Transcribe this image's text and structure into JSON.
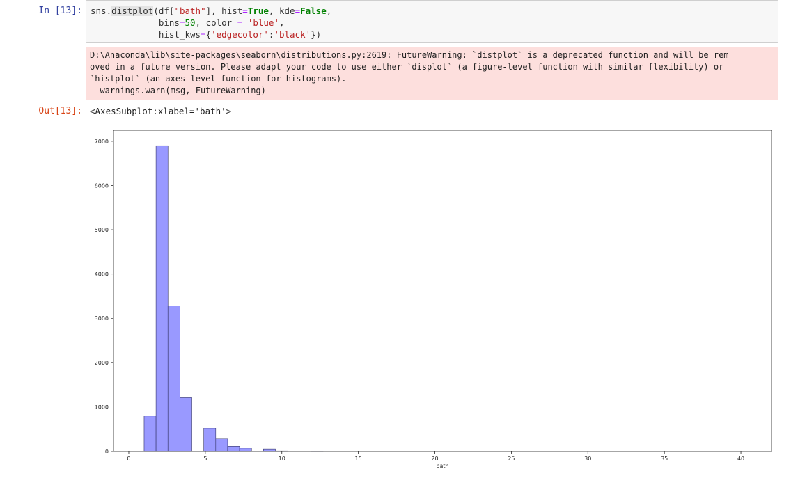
{
  "notebook": {
    "in_prompt": "In [13]:",
    "out_prompt": "Out[13]:",
    "code_lines": [
      {
        "tokens": [
          {
            "t": "sns.",
            "c": ""
          },
          {
            "t": "distplot",
            "c": "hl"
          },
          {
            "t": "(df[",
            "c": ""
          },
          {
            "t": "\"bath\"",
            "c": "str"
          },
          {
            "t": "], hist",
            "c": ""
          },
          {
            "t": "=",
            "c": "op"
          },
          {
            "t": "True",
            "c": "kw"
          },
          {
            "t": ", kde",
            "c": ""
          },
          {
            "t": "=",
            "c": "op"
          },
          {
            "t": "False",
            "c": "kw"
          },
          {
            "t": ",",
            "c": ""
          }
        ]
      },
      {
        "tokens": [
          {
            "t": "             bins",
            "c": ""
          },
          {
            "t": "=",
            "c": "op"
          },
          {
            "t": "50",
            "c": "num"
          },
          {
            "t": ", color ",
            "c": ""
          },
          {
            "t": "=",
            "c": "op"
          },
          {
            "t": " ",
            "c": ""
          },
          {
            "t": "'blue'",
            "c": "str"
          },
          {
            "t": ",",
            "c": ""
          }
        ]
      },
      {
        "tokens": [
          {
            "t": "             hist_kws",
            "c": ""
          },
          {
            "t": "=",
            "c": "op"
          },
          {
            "t": "{",
            "c": ""
          },
          {
            "t": "'edgecolor'",
            "c": "str"
          },
          {
            "t": ":",
            "c": ""
          },
          {
            "t": "'black'",
            "c": "str"
          },
          {
            "t": "})",
            "c": ""
          }
        ]
      }
    ],
    "stderr_text": "D:\\Anaconda\\lib\\site-packages\\seaborn\\distributions.py:2619: FutureWarning: `distplot` is a deprecated function and will be rem\noved in a future version. Please adapt your code to use either `displot` (a figure-level function with similar flexibility) or\n`histplot` (an axes-level function for histograms).\n  warnings.warn(msg, FutureWarning)",
    "output_text": "<AxesSubplot:xlabel='bath'>"
  },
  "colors": {
    "bar_fill": "#9999ff",
    "bar_edge": "#333366",
    "axis": "#222222"
  },
  "chart_data": {
    "type": "bar",
    "title": "",
    "xlabel": "bath",
    "ylabel": "",
    "xlim": [
      -1,
      42
    ],
    "ylim": [
      0,
      7250
    ],
    "xticks": [
      0,
      5,
      10,
      15,
      20,
      25,
      30,
      35,
      40
    ],
    "yticks": [
      0,
      1000,
      2000,
      3000,
      4000,
      5000,
      6000,
      7000
    ],
    "bin_edges": [
      1.0,
      1.78,
      2.56,
      3.34,
      4.12,
      4.9,
      5.68,
      6.46,
      7.24,
      8.02,
      8.8,
      9.58,
      10.36,
      11.14,
      11.92,
      12.7
    ],
    "values": [
      790,
      6900,
      3280,
      1220,
      0,
      520,
      285,
      105,
      65,
      0,
      45,
      12,
      0,
      0,
      8
    ],
    "grid": false
  }
}
